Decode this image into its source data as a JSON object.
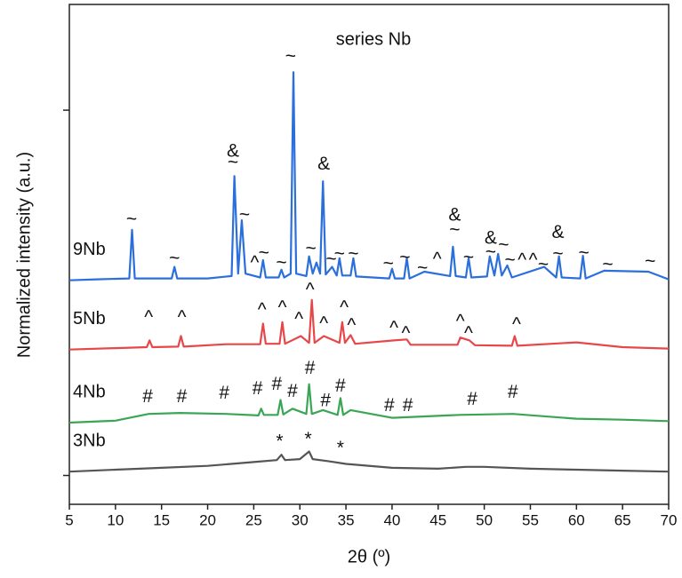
{
  "chart_data": {
    "type": "line",
    "title": "series Nb",
    "x_label": "2θ (º)",
    "y_label": "Normalized intensity (a.u.)",
    "xlim": [
      5,
      70
    ],
    "xticks": [
      5,
      10,
      15,
      20,
      25,
      30,
      35,
      40,
      45,
      50,
      55,
      60,
      65,
      70
    ],
    "ylim": [
      0,
      1.04
    ],
    "yticks": [
      0.06,
      0.82
    ],
    "series": [
      {
        "name": "9Nb",
        "color": "#2a6fdb",
        "x": [
          5,
          8,
          11.5,
          11.8,
          12.1,
          16.1,
          16.4,
          16.7,
          20,
          22.6,
          22.9,
          23.3,
          23.7,
          24.1,
          25.7,
          26,
          26.3,
          27.7,
          28,
          28.3,
          29,
          29.3,
          29.6,
          30.7,
          31,
          31.4,
          31.8,
          32.2,
          32.5,
          32.8,
          33.5,
          34,
          34.3,
          34.6,
          35.5,
          35.8,
          36.1,
          39.7,
          40,
          40.3,
          41.3,
          41.6,
          41.9,
          43.5,
          46.3,
          46.6,
          46.9,
          48,
          48.3,
          48.6,
          50.3,
          50.6,
          51.1,
          51.5,
          51.9,
          52.5,
          53,
          56.5,
          57.8,
          58.1,
          58.4,
          60.4,
          60.7,
          61,
          63,
          67.8,
          70
        ],
        "values": [
          0.466,
          0.468,
          0.47,
          0.571,
          0.47,
          0.47,
          0.494,
          0.47,
          0.47,
          0.475,
          0.683,
          0.48,
          0.591,
          0.48,
          0.472,
          0.508,
          0.472,
          0.472,
          0.488,
          0.472,
          0.48,
          0.899,
          0.48,
          0.475,
          0.516,
          0.48,
          0.503,
          0.48,
          0.672,
          0.478,
          0.494,
          0.476,
          0.512,
          0.476,
          0.476,
          0.512,
          0.474,
          0.47,
          0.49,
          0.47,
          0.47,
          0.512,
          0.47,
          0.484,
          0.475,
          0.536,
          0.475,
          0.472,
          0.512,
          0.472,
          0.474,
          0.516,
          0.476,
          0.521,
          0.476,
          0.497,
          0.472,
          0.494,
          0.472,
          0.516,
          0.472,
          0.47,
          0.517,
          0.47,
          0.486,
          0.484,
          0.468
        ]
      },
      {
        "name": "5Nb",
        "color": "#e8474a",
        "x": [
          5,
          10,
          13.4,
          13.7,
          14,
          16.8,
          17.1,
          17.4,
          22,
          25.7,
          26,
          26.3,
          27.8,
          28.1,
          28.4,
          30.1,
          31,
          31.3,
          31.6,
          32.6,
          34.3,
          34.6,
          34.9,
          35.5,
          36,
          40.2,
          41.6,
          42,
          47.1,
          47.4,
          48.4,
          49,
          53,
          53.3,
          53.6,
          60,
          65,
          70
        ],
        "values": [
          0.322,
          0.325,
          0.327,
          0.341,
          0.327,
          0.328,
          0.35,
          0.328,
          0.333,
          0.333,
          0.376,
          0.334,
          0.334,
          0.379,
          0.334,
          0.35,
          0.336,
          0.425,
          0.336,
          0.35,
          0.336,
          0.379,
          0.336,
          0.352,
          0.334,
          0.341,
          0.343,
          0.332,
          0.332,
          0.347,
          0.341,
          0.331,
          0.33,
          0.35,
          0.33,
          0.337,
          0.327,
          0.324
        ]
      },
      {
        "name": "4Nb",
        "color": "#3aa655",
        "x": [
          5,
          10,
          13.6,
          17,
          22,
          25.5,
          25.8,
          26.1,
          27.6,
          27.9,
          28.2,
          29.2,
          30.7,
          31,
          31.3,
          32.5,
          34.1,
          34.4,
          34.7,
          35.5,
          40,
          47.3,
          53.1,
          60,
          65,
          70
        ],
        "values": [
          0.17,
          0.174,
          0.188,
          0.19,
          0.188,
          0.185,
          0.199,
          0.186,
          0.186,
          0.217,
          0.187,
          0.199,
          0.188,
          0.25,
          0.188,
          0.196,
          0.186,
          0.221,
          0.186,
          0.196,
          0.18,
          0.186,
          0.188,
          0.178,
          0.176,
          0.173
        ]
      },
      {
        "name": "3Nb",
        "color": "#555555",
        "x": [
          5,
          10,
          15,
          20,
          25,
          27.5,
          28,
          28.4,
          30,
          31,
          31.4,
          33,
          35,
          40,
          45,
          48,
          50,
          55,
          60,
          65,
          70
        ],
        "values": [
          0.068,
          0.072,
          0.076,
          0.08,
          0.088,
          0.092,
          0.103,
          0.092,
          0.094,
          0.11,
          0.094,
          0.09,
          0.084,
          0.076,
          0.074,
          0.078,
          0.078,
          0.074,
          0.072,
          0.07,
          0.068
        ]
      }
    ],
    "annotations": [
      {
        "text": "~",
        "x": 11.75,
        "y": 0.591
      },
      {
        "text": "~",
        "x": 16.4,
        "y": 0.51
      },
      {
        "text": "&",
        "x": 22.75,
        "y": 0.733
      },
      {
        "text": "~",
        "x": 22.75,
        "y": 0.709
      },
      {
        "text": "~",
        "x": 24.0,
        "y": 0.6
      },
      {
        "text": "^",
        "x": 25.1,
        "y": 0.501
      },
      {
        "text": "~",
        "x": 26.1,
        "y": 0.521
      },
      {
        "text": "~",
        "x": 28.0,
        "y": 0.501
      },
      {
        "text": "~",
        "x": 29.0,
        "y": 0.93
      },
      {
        "text": "~",
        "x": 31.2,
        "y": 0.53
      },
      {
        "text": "&",
        "x": 32.6,
        "y": 0.707
      },
      {
        "text": "~",
        "x": 33.4,
        "y": 0.508
      },
      {
        "text": "~",
        "x": 34.3,
        "y": 0.519
      },
      {
        "text": "~",
        "x": 35.8,
        "y": 0.519
      },
      {
        "text": "~",
        "x": 39.6,
        "y": 0.499
      },
      {
        "text": "~",
        "x": 41.4,
        "y": 0.512
      },
      {
        "text": "~",
        "x": 43.3,
        "y": 0.49
      },
      {
        "text": "^",
        "x": 44.9,
        "y": 0.508
      },
      {
        "text": "&",
        "x": 46.8,
        "y": 0.6
      },
      {
        "text": "~",
        "x": 46.8,
        "y": 0.569
      },
      {
        "text": "~",
        "x": 48.3,
        "y": 0.512
      },
      {
        "text": "&",
        "x": 50.7,
        "y": 0.552
      },
      {
        "text": "~",
        "x": 50.7,
        "y": 0.523
      },
      {
        "text": "~",
        "x": 52.1,
        "y": 0.538
      },
      {
        "text": "~",
        "x": 52.8,
        "y": 0.506
      },
      {
        "text": "^",
        "x": 54.1,
        "y": 0.506
      },
      {
        "text": "^",
        "x": 55.3,
        "y": 0.506
      },
      {
        "text": "~",
        "x": 56.4,
        "y": 0.497
      },
      {
        "text": "&",
        "x": 58.0,
        "y": 0.564
      },
      {
        "text": "~",
        "x": 58.0,
        "y": 0.519
      },
      {
        "text": "~",
        "x": 60.8,
        "y": 0.521
      },
      {
        "text": "~",
        "x": 63.4,
        "y": 0.497
      },
      {
        "text": "~",
        "x": 68.0,
        "y": 0.503
      },
      {
        "text": "^",
        "x": 13.6,
        "y": 0.387
      },
      {
        "text": "^",
        "x": 17.2,
        "y": 0.387
      },
      {
        "text": "^",
        "x": 25.9,
        "y": 0.403
      },
      {
        "text": "^",
        "x": 28.1,
        "y": 0.407
      },
      {
        "text": "^",
        "x": 29.9,
        "y": 0.383
      },
      {
        "text": "^",
        "x": 31.1,
        "y": 0.444
      },
      {
        "text": "^",
        "x": 32.6,
        "y": 0.374
      },
      {
        "text": "^",
        "x": 34.8,
        "y": 0.407
      },
      {
        "text": "^",
        "x": 35.6,
        "y": 0.37
      },
      {
        "text": "^",
        "x": 40.2,
        "y": 0.365
      },
      {
        "text": "^",
        "x": 41.5,
        "y": 0.354
      },
      {
        "text": "^",
        "x": 47.4,
        "y": 0.379
      },
      {
        "text": "^",
        "x": 48.3,
        "y": 0.354
      },
      {
        "text": "^",
        "x": 53.5,
        "y": 0.372
      },
      {
        "text": "#",
        "x": 13.5,
        "y": 0.223
      },
      {
        "text": "#",
        "x": 17.2,
        "y": 0.223
      },
      {
        "text": "#",
        "x": 21.8,
        "y": 0.23
      },
      {
        "text": "#",
        "x": 25.4,
        "y": 0.239
      },
      {
        "text": "#",
        "x": 27.5,
        "y": 0.249
      },
      {
        "text": "#",
        "x": 29.2,
        "y": 0.234
      },
      {
        "text": "#",
        "x": 31.1,
        "y": 0.282
      },
      {
        "text": "#",
        "x": 32.8,
        "y": 0.214
      },
      {
        "text": "#",
        "x": 34.4,
        "y": 0.245
      },
      {
        "text": "#",
        "x": 39.7,
        "y": 0.204
      },
      {
        "text": "#",
        "x": 41.7,
        "y": 0.204
      },
      {
        "text": "#",
        "x": 48.7,
        "y": 0.217
      },
      {
        "text": "#",
        "x": 53.1,
        "y": 0.232
      },
      {
        "text": "*",
        "x": 27.8,
        "y": 0.129
      },
      {
        "text": "*",
        "x": 30.9,
        "y": 0.134
      },
      {
        "text": "*",
        "x": 34.4,
        "y": 0.116
      }
    ]
  }
}
